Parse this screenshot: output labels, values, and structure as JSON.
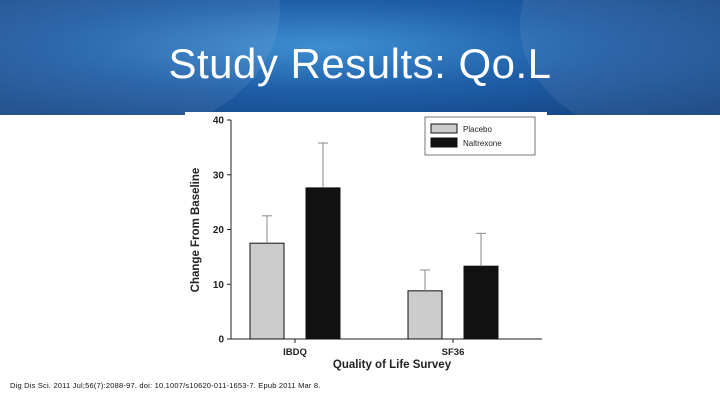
{
  "slide": {
    "title": "Study Results: Qo.L",
    "citation": "Dig Dis Sci. 2011 Jul;56(7):2088-97. doi: 10.1007/s10620-011-1653-7. Epub 2011 Mar 8.",
    "theme_colors": {
      "banner_dark": "#123f7c",
      "banner_mid": "#1f5fa8",
      "banner_light": "#3f8fd2"
    }
  },
  "chart_data": {
    "type": "bar",
    "categories": [
      "IBDQ",
      "SF36"
    ],
    "series": [
      {
        "name": "Placebo",
        "color": "#cccccc",
        "values": [
          17.5,
          8.8
        ],
        "error": [
          5.0,
          3.8
        ]
      },
      {
        "name": "Naltrexone",
        "color": "#111111",
        "values": [
          27.6,
          13.3
        ],
        "error": [
          8.2,
          6.0
        ]
      }
    ],
    "xlabel": "Quality of Life Survey",
    "ylabel": "Change From Baseline",
    "ylim": [
      0,
      40
    ],
    "yticks": [
      0,
      10,
      20,
      30,
      40
    ],
    "grid": false,
    "legend_position": "top-right"
  }
}
